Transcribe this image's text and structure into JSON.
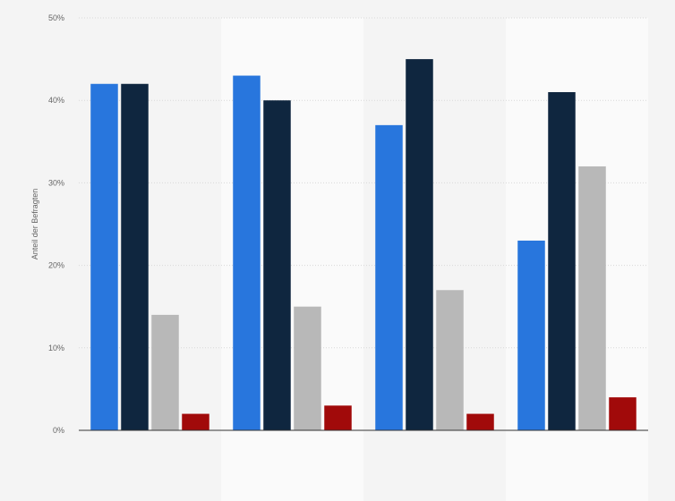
{
  "chart_data": {
    "type": "bar",
    "title": "",
    "xlabel": "",
    "ylabel": "Anteil der Befragten",
    "categories": [
      "",
      "",
      "",
      ""
    ],
    "series": [
      {
        "color": "#2876dd",
        "values": [
          42,
          43,
          37,
          23
        ]
      },
      {
        "color": "#0f263f",
        "values": [
          42,
          40,
          45,
          41
        ]
      },
      {
        "color": "#b8b8b8",
        "values": [
          14,
          15,
          17,
          32
        ]
      },
      {
        "color": "#a10a0a",
        "values": [
          2,
          3,
          2,
          4
        ]
      }
    ],
    "ylim": [
      0,
      50
    ],
    "yticks": [
      "0%",
      "10%",
      "20%",
      "30%",
      "40%",
      "50%"
    ],
    "grid": true,
    "legend": "none"
  }
}
